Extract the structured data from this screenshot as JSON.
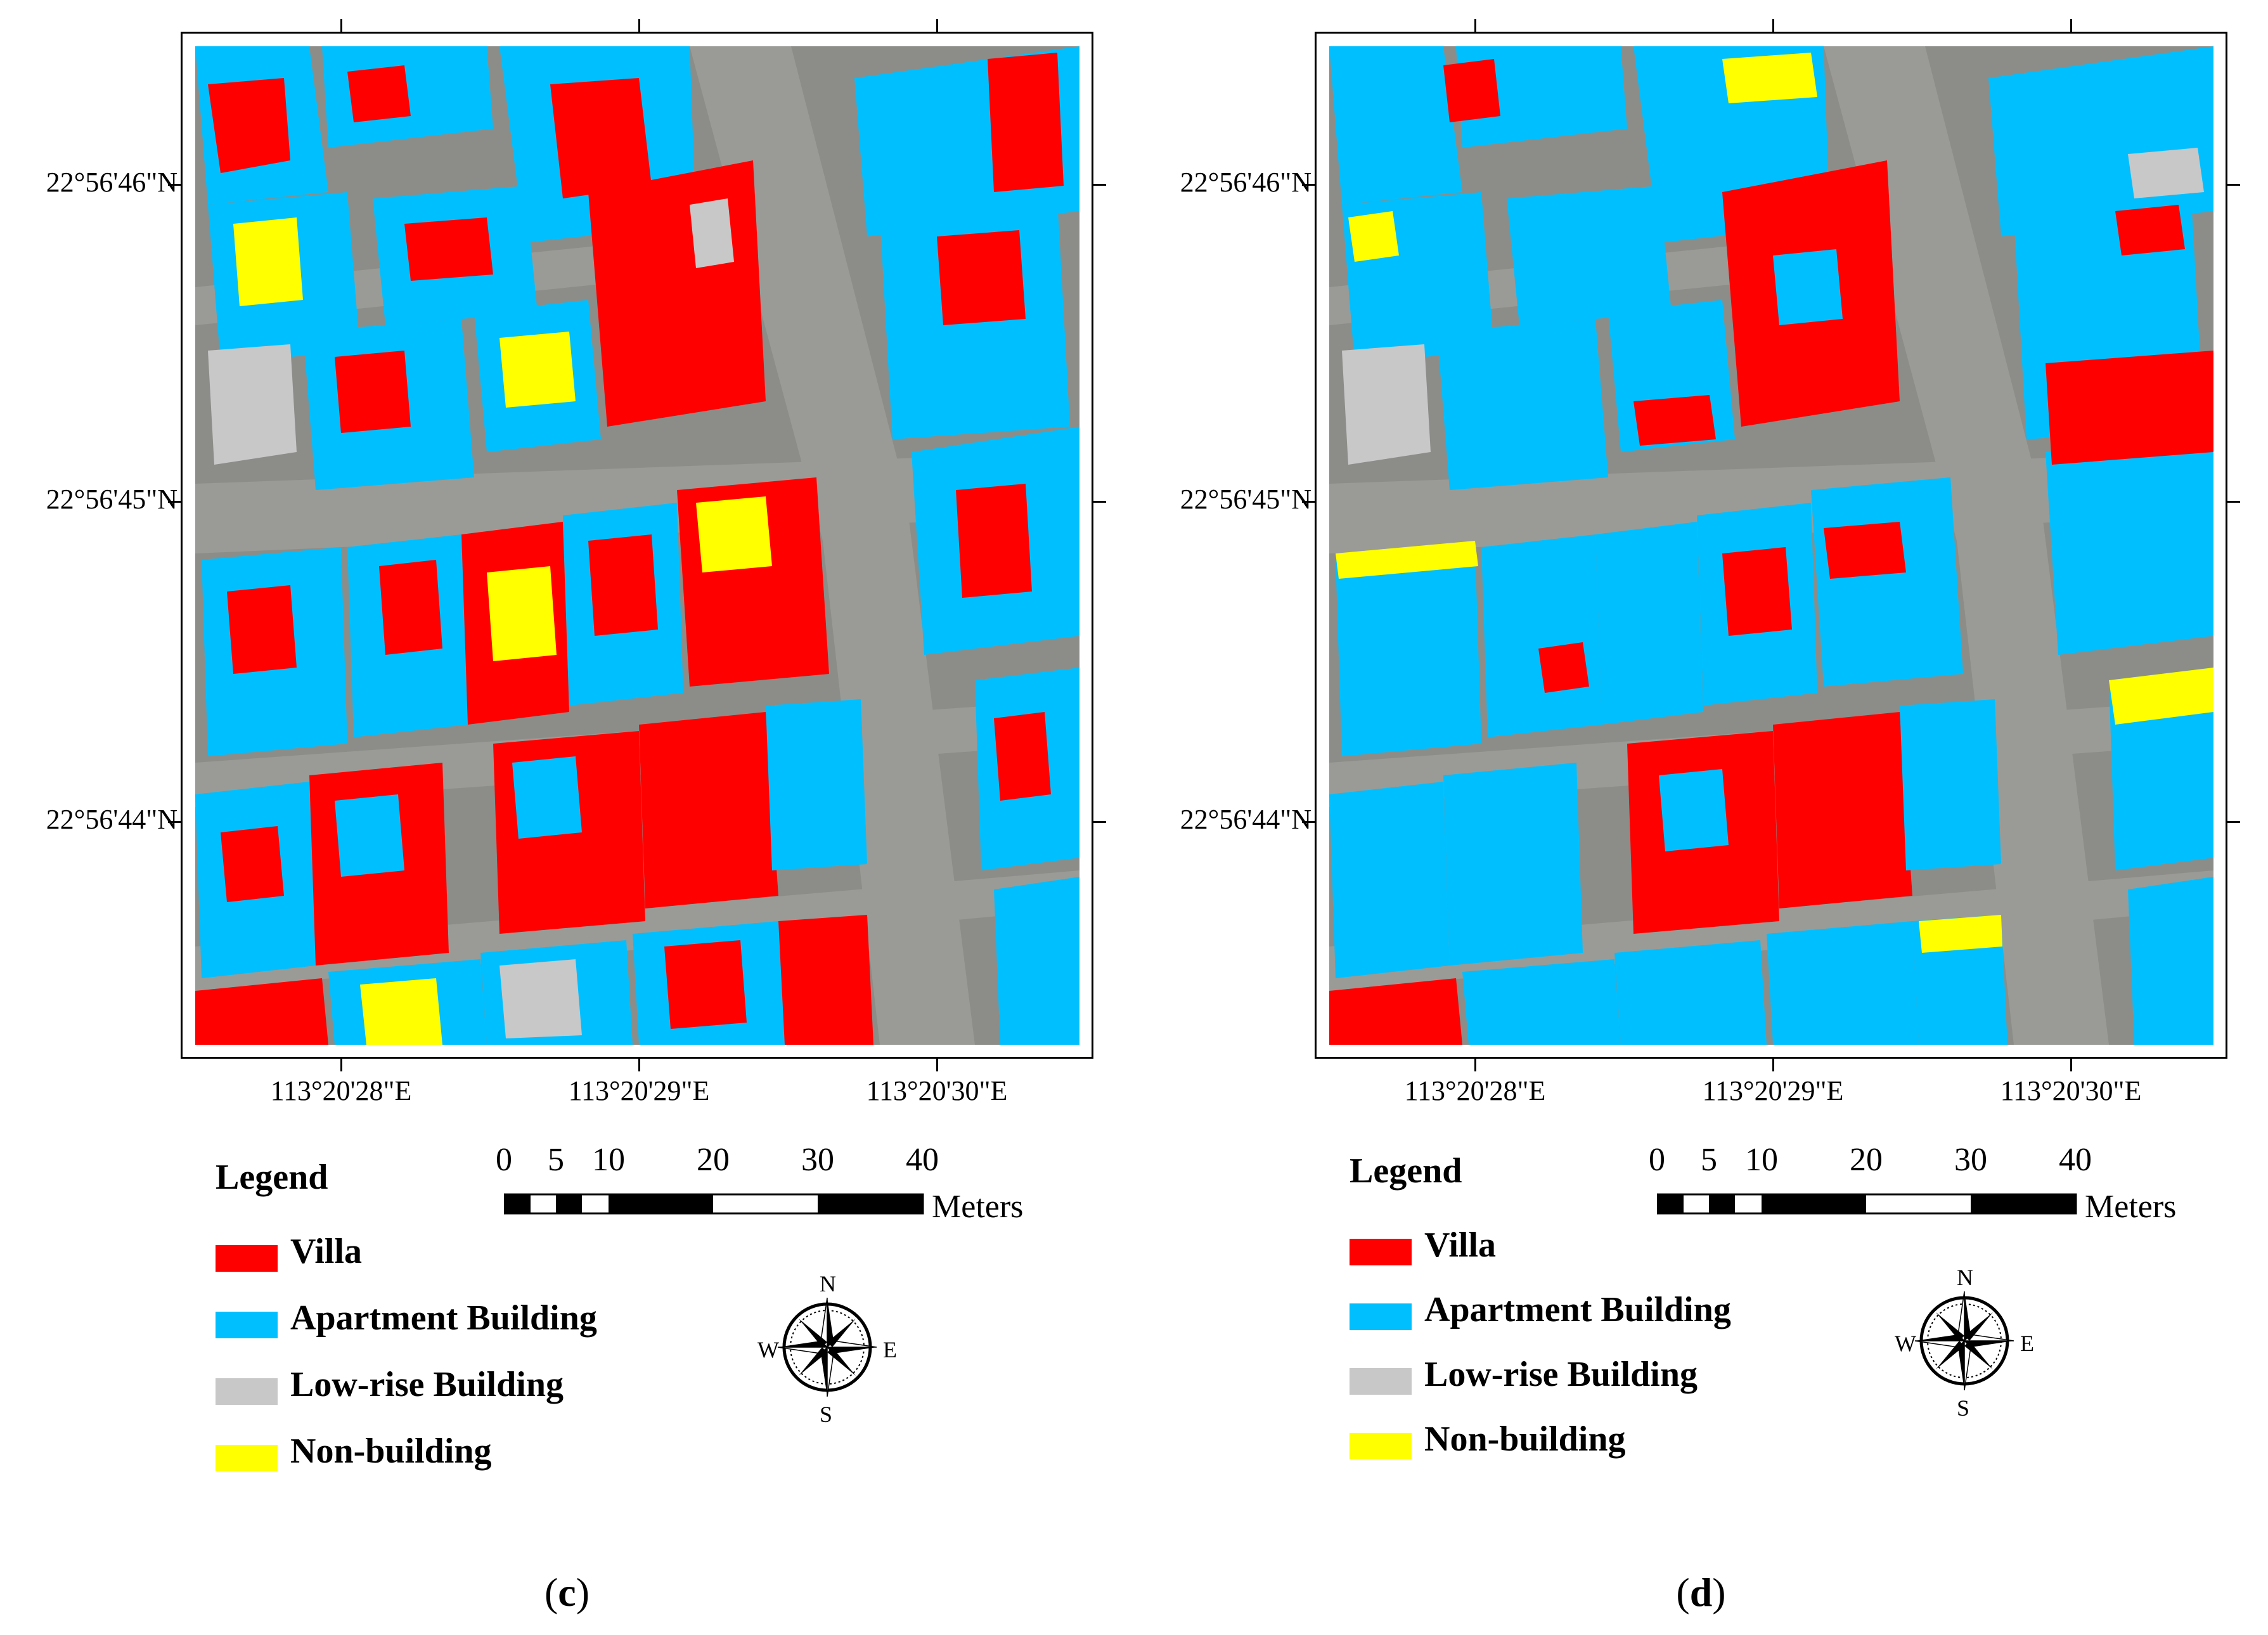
{
  "panels": [
    {
      "id": "c",
      "caption_open": "(",
      "caption_letter": "c",
      "caption_close": ")"
    },
    {
      "id": "d",
      "caption_open": "(",
      "caption_letter": "d",
      "caption_close": ")"
    }
  ],
  "latitude_labels": [
    "22°56'46\"N",
    "22°56'45\"N",
    "22°56'44\"N"
  ],
  "longitude_labels": [
    "113°20'28\"E",
    "113°20'29\"E",
    "113°20'30\"E"
  ],
  "legend": {
    "title": "Legend",
    "items": [
      {
        "label": "Villa",
        "color": "#ff0000"
      },
      {
        "label": "Apartment Building",
        "color": "#00bfff"
      },
      {
        "label": "Low-rise Building",
        "color": "#c8c8c8"
      },
      {
        "label": "Non-building",
        "color": "#ffff00"
      }
    ]
  },
  "scale_bar": {
    "labels": [
      "0",
      "5",
      "10",
      "20",
      "30",
      "40"
    ],
    "unit": "Meters"
  },
  "compass": {
    "n": "N",
    "s": "S",
    "e": "E",
    "w": "W"
  }
}
